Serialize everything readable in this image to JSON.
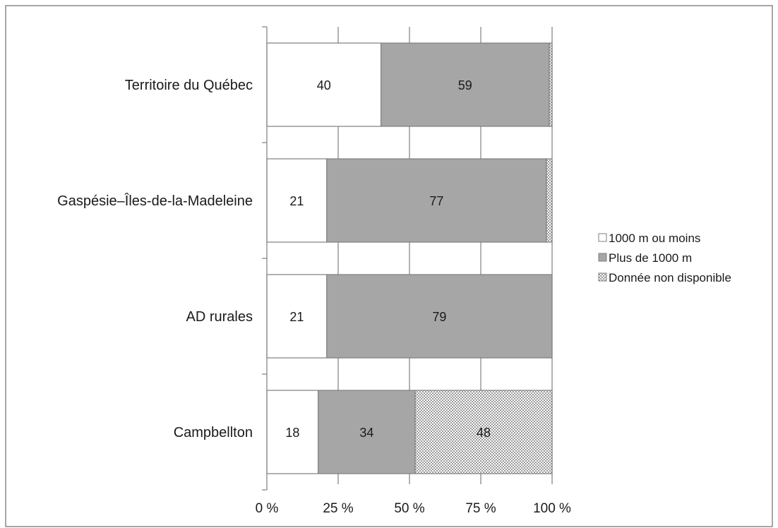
{
  "chart_data": {
    "type": "bar",
    "orientation": "horizontal",
    "stacked": "percent",
    "title": "",
    "xlabel": "",
    "ylabel": "",
    "xlim": [
      0,
      100
    ],
    "x_ticks": [
      "0 %",
      "25 %",
      "50 %",
      "75 %",
      "100 %"
    ],
    "categories": [
      "Territoire du Québec",
      "Gaspésie–Îles-de-la-Madeleine",
      "AD rurales",
      "Campbellton"
    ],
    "series": [
      {
        "name": "1000 m ou moins",
        "values": [
          40,
          21,
          21,
          18
        ],
        "labels": [
          "40",
          "21",
          "21",
          "18"
        ],
        "color": "#ffffff",
        "pattern": "solid"
      },
      {
        "name": "Plus de 1000 m",
        "values": [
          59,
          77,
          79,
          34
        ],
        "labels": [
          "59",
          "77",
          "79",
          "34"
        ],
        "color": "#a6a6a6",
        "pattern": "solid"
      },
      {
        "name": "Donnée non disponible",
        "values": [
          1,
          2,
          0,
          48
        ],
        "labels": [
          "",
          "",
          "",
          "48"
        ],
        "color": "#d9d9d9",
        "pattern": "checker"
      }
    ],
    "grid": true,
    "legend_position": "right"
  }
}
